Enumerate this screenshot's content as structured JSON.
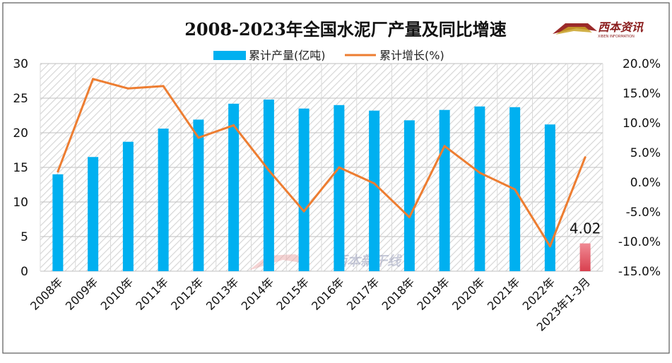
{
  "chart_data": {
    "type": "bar",
    "title": "2008-2023年全国水泥厂产量及同比增速",
    "categories": [
      "2008年",
      "2009年",
      "2010年",
      "2011年",
      "2012年",
      "2013年",
      "2014年",
      "2015年",
      "2016年",
      "2017年",
      "2018年",
      "2019年",
      "2020年",
      "2021年",
      "2022年",
      "2023年1-3月"
    ],
    "series": [
      {
        "name": "累计产量(亿吨)",
        "type": "bar",
        "axis": "left",
        "color": "#00B0F0",
        "values": [
          14.0,
          16.5,
          18.7,
          20.6,
          21.9,
          24.2,
          24.8,
          23.5,
          24.0,
          23.2,
          21.8,
          23.3,
          23.8,
          23.7,
          21.2,
          4.02
        ]
      },
      {
        "name": "累计增长(%)",
        "type": "line",
        "axis": "right",
        "color": "#ED7D31",
        "values": [
          1.8,
          17.4,
          15.8,
          16.2,
          7.5,
          9.6,
          2.0,
          -4.9,
          2.5,
          -0.2,
          -5.9,
          6.1,
          1.6,
          -1.2,
          -10.8,
          4.2
        ]
      }
    ],
    "highlight": {
      "index": 15,
      "color": "#E46C77",
      "label": "4.02"
    },
    "y_left": {
      "min": 0,
      "max": 30,
      "ticks": [
        "0",
        "5",
        "10",
        "15",
        "20",
        "25",
        "30"
      ]
    },
    "y_right": {
      "min": -15,
      "max": 20,
      "ticks": [
        "-15.0%",
        "-10.0%",
        "-5.0%",
        "0.0%",
        "5.0%",
        "10.0%",
        "15.0%",
        "20.0%"
      ]
    },
    "grid": true,
    "legend_position": "top-center"
  },
  "logo": {
    "text": "西本资讯",
    "sub": "XIBEN INFORMATION"
  },
  "watermark": {
    "text": "西本新干线"
  }
}
